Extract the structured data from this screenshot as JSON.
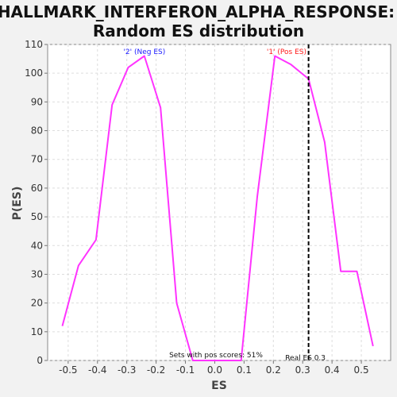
{
  "chart_data": {
    "type": "line",
    "title_line1": "HALLMARK_INTERFERON_ALPHA_RESPONSE:",
    "title_line2": "Random ES distribution",
    "xlabel": "ES",
    "ylabel": "P(ES)",
    "xlim": [
      -0.57,
      0.6
    ],
    "ylim": [
      0,
      110
    ],
    "xticks": [
      -0.5,
      -0.4,
      -0.3,
      -0.2,
      -0.1,
      0.0,
      0.1,
      0.2,
      0.3,
      0.4,
      0.5
    ],
    "yticks": [
      0,
      10,
      20,
      30,
      40,
      50,
      60,
      70,
      80,
      90,
      100,
      110
    ],
    "grid": true,
    "series": [
      {
        "color": "#ff33ff",
        "x": [
          -0.52,
          -0.465,
          -0.405,
          -0.35,
          -0.295,
          -0.24,
          -0.185,
          -0.13,
          -0.075,
          -0.02,
          0.035,
          0.09,
          0.145,
          0.205,
          0.26,
          0.32,
          0.375,
          0.43,
          0.485,
          0.54
        ],
        "y": [
          12,
          33,
          42,
          89,
          102,
          106,
          88,
          20,
          0,
          0,
          0,
          0,
          57,
          106,
          103,
          98,
          76,
          31,
          31,
          5
        ]
      }
    ],
    "real_es": 0.3,
    "annotations": {
      "neg": "'2' (Neg ES)",
      "pos": "'1' (Pos ES)",
      "pos_scores": "Sets with pos scores: 51%",
      "real_es": "Real ES 0.3"
    },
    "colors": {
      "neg_label": "#1a1aff",
      "pos_label": "#ff1a1a"
    }
  }
}
